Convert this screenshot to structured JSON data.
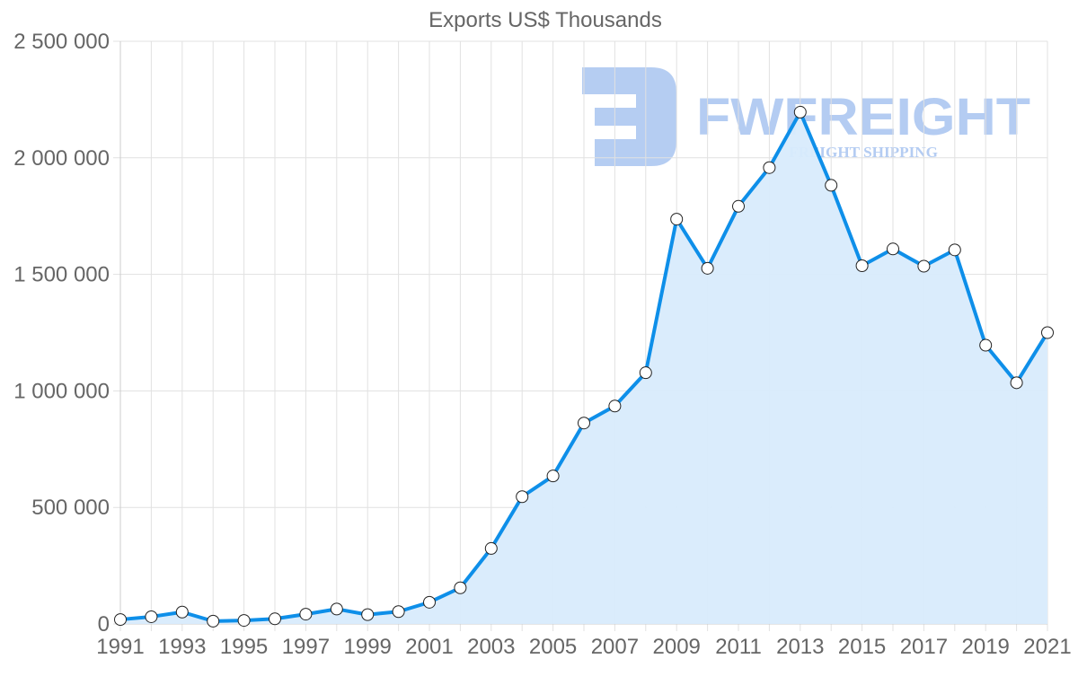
{
  "chart_data": {
    "type": "area",
    "title": "Exports US$ Thousands",
    "xlabel": "",
    "ylabel": "",
    "x": [
      1991,
      1992,
      1993,
      1994,
      1995,
      1996,
      1997,
      1998,
      1999,
      2000,
      2001,
      2002,
      2003,
      2004,
      2005,
      2006,
      2007,
      2008,
      2009,
      2010,
      2011,
      2012,
      2013,
      2014,
      2015,
      2016,
      2017,
      2018,
      2019,
      2020,
      2021
    ],
    "series": [
      {
        "name": "Exports US$ Thousands",
        "values": [
          19000,
          31000,
          51000,
          12000,
          15000,
          22000,
          42000,
          64000,
          40000,
          53000,
          93000,
          155000,
          324000,
          546000,
          635000,
          862000,
          935000,
          1078000,
          1737000,
          1526000,
          1792000,
          1958000,
          2196000,
          1882000,
          1537000,
          1609000,
          1535000,
          1605000,
          1196000,
          1035000,
          1250000
        ]
      }
    ],
    "ylim": [
      0,
      2500000
    ],
    "yticks": [
      "0",
      "500 000",
      "1 000 000",
      "1 500 000",
      "2 000 000",
      "2 500 000"
    ],
    "ytick_values": [
      0,
      500000,
      1000000,
      1500000,
      2000000,
      2500000
    ],
    "xticks": [
      "1991",
      "1993",
      "1995",
      "1997",
      "1999",
      "2001",
      "2003",
      "2005",
      "2007",
      "2009",
      "2011",
      "2013",
      "2015",
      "2017",
      "2019",
      "2021"
    ],
    "grid": true,
    "legend": "none",
    "colors": {
      "line": "#0e8fe9",
      "fill": "#d8ebfc",
      "grid": "#e1e1e1",
      "axis": "#cccccc",
      "text": "#666666",
      "marker_fill": "#ffffff",
      "marker_stroke": "#222222"
    }
  },
  "watermark": {
    "brand": "FWFREIGHT",
    "tagline": "FREIGHT SHIPPING",
    "color": "#a8c4f0"
  }
}
